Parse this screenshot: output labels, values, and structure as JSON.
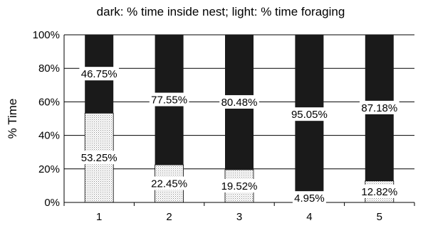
{
  "chart_data": {
    "type": "bar",
    "stacked": true,
    "title": "dark: % time inside nest; light: % time foraging",
    "xlabel": "",
    "ylabel": "% Time",
    "categories": [
      "1",
      "2",
      "3",
      "4",
      "5"
    ],
    "ylim": [
      0,
      100
    ],
    "yticks": [
      "0%",
      "20%",
      "40%",
      "60%",
      "80%",
      "100%"
    ],
    "grid": true,
    "series": [
      {
        "role": "foraging",
        "color": "#f2f2f2",
        "values": [
          53.25,
          22.45,
          19.52,
          4.95,
          12.82
        ],
        "labels": [
          "53.25%",
          "22.45%",
          "19.52%",
          "4.95%",
          "12.82%"
        ]
      },
      {
        "role": "inside-nest",
        "color": "#1a1a1a",
        "values": [
          46.75,
          77.55,
          80.48,
          95.05,
          87.18
        ],
        "labels": [
          "46.75%",
          "77.55%",
          "80.48%",
          "95.05%",
          "87.18%"
        ]
      }
    ]
  }
}
